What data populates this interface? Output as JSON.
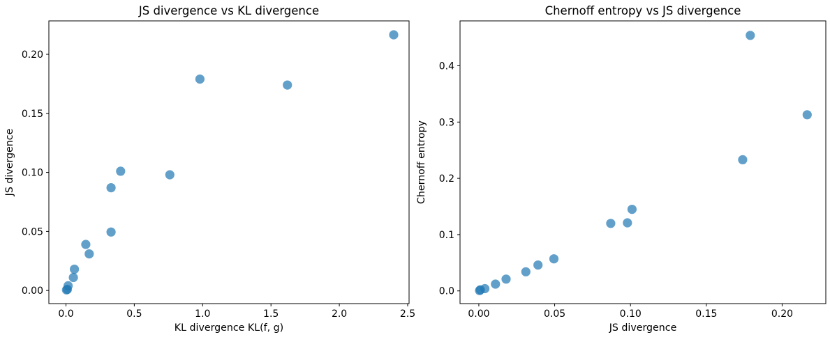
{
  "figure": {
    "background": "#ffffff",
    "marker_color": "#1f77b4",
    "marker_opacity": 0.7,
    "frame_color": "#000000"
  },
  "chart_data": [
    {
      "type": "scatter",
      "title": "JS divergence vs KL divergence",
      "xlabel": "KL divergence KL(f, g)",
      "ylabel": "JS divergence",
      "xlim": [
        -0.1251,
        2.5103
      ],
      "ylim": [
        -0.0111,
        0.2283
      ],
      "xticks": [
        0.0,
        0.5,
        1.0,
        1.5,
        2.0,
        2.5
      ],
      "xtick_labels": [
        "0.0",
        "0.5",
        "1.0",
        "1.5",
        "2.0",
        "2.5"
      ],
      "yticks": [
        0.0,
        0.05,
        0.1,
        0.15,
        0.2
      ],
      "ytick_labels": [
        "0.00",
        "0.05",
        "0.10",
        "0.15",
        "0.20"
      ],
      "grid": false,
      "legend": "none",
      "points": {
        "x": [
          0.004,
          0.01,
          0.016,
          0.054,
          0.062,
          0.145,
          0.17,
          0.33,
          0.33,
          0.4,
          0.76,
          0.98,
          1.62,
          2.398
        ],
        "y": [
          0.0005,
          0.001,
          0.004,
          0.011,
          0.018,
          0.039,
          0.031,
          0.0495,
          0.087,
          0.101,
          0.098,
          0.179,
          0.174,
          0.2165
        ]
      }
    },
    {
      "type": "scatter",
      "title": "Chernoff entropy vs JS divergence",
      "xlabel": "JS divergence",
      "ylabel": "Chernoff entropy",
      "xlim": [
        -0.0124,
        0.2288
      ],
      "ylim": [
        -0.0226,
        0.4798
      ],
      "xticks": [
        0.0,
        0.05,
        0.1,
        0.15,
        0.2
      ],
      "xtick_labels": [
        "0.00",
        "0.05",
        "0.10",
        "0.15",
        "0.20"
      ],
      "yticks": [
        0.0,
        0.1,
        0.2,
        0.3,
        0.4
      ],
      "ytick_labels": [
        "0.0",
        "0.1",
        "0.2",
        "0.3",
        "0.4"
      ],
      "grid": false,
      "legend": "none",
      "points": {
        "x": [
          0.0005,
          0.001,
          0.004,
          0.011,
          0.018,
          0.039,
          0.031,
          0.0495,
          0.087,
          0.101,
          0.098,
          0.179,
          0.174,
          0.2165
        ],
        "y": [
          0.0005,
          0.002,
          0.004,
          0.012,
          0.021,
          0.046,
          0.034,
          0.057,
          0.12,
          0.145,
          0.121,
          0.454,
          0.233,
          0.313
        ]
      }
    }
  ]
}
